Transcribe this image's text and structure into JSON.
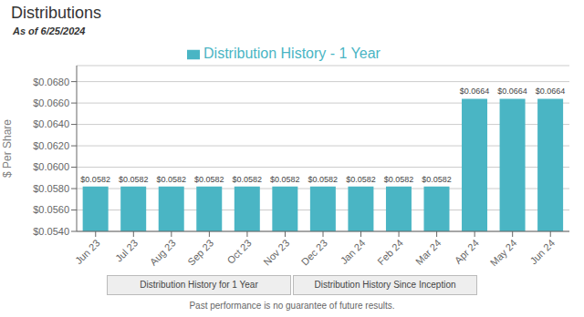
{
  "chart_data": {
    "type": "bar",
    "title": "Distributions",
    "subtitle": "As of 6/25/2024",
    "ylabel": "$ Per Share",
    "categories": [
      "Jun 23",
      "Jul 23",
      "Aug 23",
      "Sep 23",
      "Oct 23",
      "Nov 23",
      "Dec 23",
      "Jan 24",
      "Feb 24",
      "Mar 24",
      "Apr 24",
      "May 24",
      "Jun 24"
    ],
    "series": [
      {
        "name": "Distribution History - 1 Year",
        "color": "#4ab5c4",
        "values": [
          0.0582,
          0.0582,
          0.0582,
          0.0582,
          0.0582,
          0.0582,
          0.0582,
          0.0582,
          0.0582,
          0.0582,
          0.0664,
          0.0664,
          0.0664
        ],
        "value_labels": [
          "$0.0582",
          "$0.0582",
          "$0.0582",
          "$0.0582",
          "$0.0582",
          "$0.0582",
          "$0.0582",
          "$0.0582",
          "$0.0582",
          "$0.0582",
          "$0.0664",
          "$0.0664",
          "$0.0664"
        ]
      }
    ],
    "ylim": [
      0.054,
      0.0695
    ],
    "yticks": [
      {
        "value": 0.054,
        "label": "$0.0540"
      },
      {
        "value": 0.056,
        "label": "$0.0560"
      },
      {
        "value": 0.058,
        "label": "$0.0580"
      },
      {
        "value": 0.06,
        "label": "$0.0600"
      },
      {
        "value": 0.062,
        "label": "$0.0620"
      },
      {
        "value": 0.064,
        "label": "$0.0640"
      },
      {
        "value": 0.066,
        "label": "$0.0660"
      },
      {
        "value": 0.068,
        "label": "$0.0680"
      }
    ],
    "grid": true,
    "legend": "top",
    "data_labels": true,
    "annotations": [
      "Distribution History for 1 Year",
      "Distribution History Since Inception",
      "Past performance is no guarantee of future results."
    ]
  }
}
